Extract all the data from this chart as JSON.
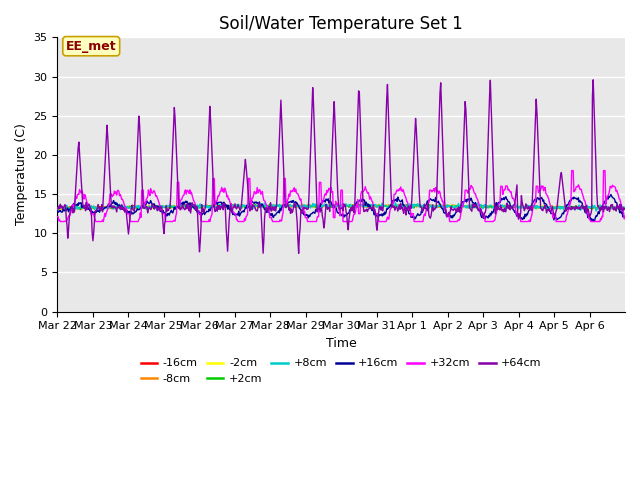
{
  "title": "Soil/Water Temperature Set 1",
  "xlabel": "Time",
  "ylabel": "Temperature (C)",
  "ylim": [
    0,
    35
  ],
  "yticks": [
    0,
    5,
    10,
    15,
    20,
    25,
    30,
    35
  ],
  "annotation_text": "EE_met",
  "annotation_color": "#8B0000",
  "annotation_bg": "#FFFFC0",
  "annotation_border": "#C8A000",
  "plot_bg": "#E8E8E8",
  "legend_entries": [
    "-16cm",
    "-8cm",
    "-2cm",
    "+2cm",
    "+8cm",
    "+16cm",
    "+32cm",
    "+64cm"
  ],
  "legend_colors": [
    "#FF0000",
    "#FF8800",
    "#FFFF00",
    "#00CC00",
    "#00CCCC",
    "#000099",
    "#FF00FF",
    "#8800AA"
  ],
  "num_days": 16,
  "xtick_labels": [
    "Mar 22",
    "Mar 23",
    "Mar 24",
    "Mar 25",
    "Mar 26",
    "Mar 27",
    "Mar 28",
    "Mar 29",
    "Mar 30",
    "Mar 31",
    "Apr 1",
    "Apr 2",
    "Apr 3",
    "Apr 4",
    "Apr 5",
    "Apr 6"
  ]
}
